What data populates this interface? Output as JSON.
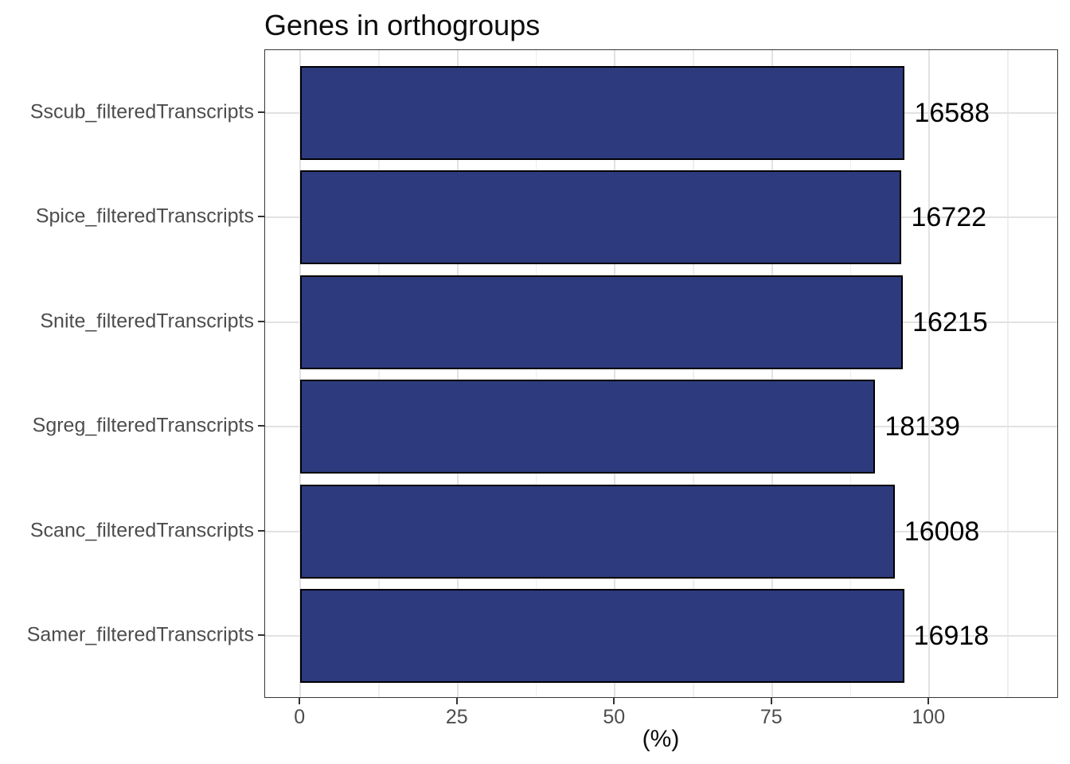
{
  "chart_data": {
    "type": "bar",
    "orientation": "horizontal",
    "title": "Genes in orthogroups",
    "xlabel": "(%)",
    "ylabel": "",
    "categories": [
      "Sscub_filteredTranscripts",
      "Spice_filteredTranscripts",
      "Snite_filteredTranscripts",
      "Sgreg_filteredTranscripts",
      "Scanc_filteredTranscripts",
      "Samer_filteredTranscripts"
    ],
    "values_pct": [
      96.1,
      95.6,
      95.8,
      91.4,
      94.5,
      96.0
    ],
    "bar_labels": [
      "16588",
      "16722",
      "16215",
      "18139",
      "16008",
      "16918"
    ],
    "x_ticks": [
      0,
      25,
      50,
      75,
      100
    ],
    "x_minor_ticks": [
      12.5,
      37.5,
      62.5,
      87.5,
      112.5
    ],
    "xlim": [
      -5.6,
      120.6
    ],
    "grid": true,
    "legend": false,
    "colors": {
      "bar_fill": "#2d3a7d",
      "bar_stroke": "#000000",
      "grid_major": "#e2e2e2",
      "grid_minor": "#eeeeee",
      "panel_border": "#383838",
      "tick_mark": "#333333",
      "axis_text": "#4d4d4d",
      "title_text": "#0d0d0d"
    }
  }
}
